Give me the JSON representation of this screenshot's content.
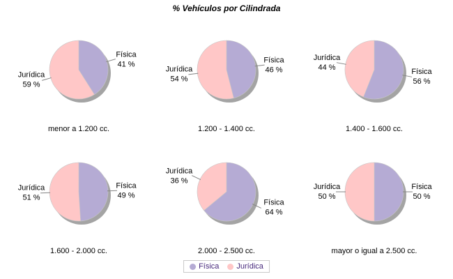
{
  "title": "% Vehículos por Cilindrada",
  "legend": {
    "items": [
      {
        "name": "Física",
        "color": "#b5abd4"
      },
      {
        "name": "Jurídica",
        "color": "#ffc7c7"
      }
    ]
  },
  "chart_data": {
    "type": "pie",
    "title": "% Vehículos por Cilindrada",
    "unit": "%",
    "layout": "3x2 grid of pies, slices start at 12 o'clock clockwise, legend bottom center",
    "series_names": [
      "Física",
      "Jurídica"
    ],
    "colors": {
      "fisica": "#b5abd4",
      "juridica": "#ffc7c7",
      "shadow": "#949494",
      "leader_line": "#848484",
      "legend_text": "#46277b"
    },
    "pies": [
      {
        "category": "menor a 1.200 cc.",
        "fisica": 41,
        "juridica": 59
      },
      {
        "category": "1.200 - 1.400 cc.",
        "fisica": 46,
        "juridica": 54
      },
      {
        "category": "1.400 - 1.600 cc.",
        "fisica": 56,
        "juridica": 44
      },
      {
        "category": "1.600 - 2.000 cc.",
        "fisica": 49,
        "juridica": 51
      },
      {
        "category": "2.000 - 2.500 cc.",
        "fisica": 64,
        "juridica": 36
      },
      {
        "category": "mayor o igual a 2.500 cc.",
        "fisica": 50,
        "juridica": 50
      }
    ]
  }
}
